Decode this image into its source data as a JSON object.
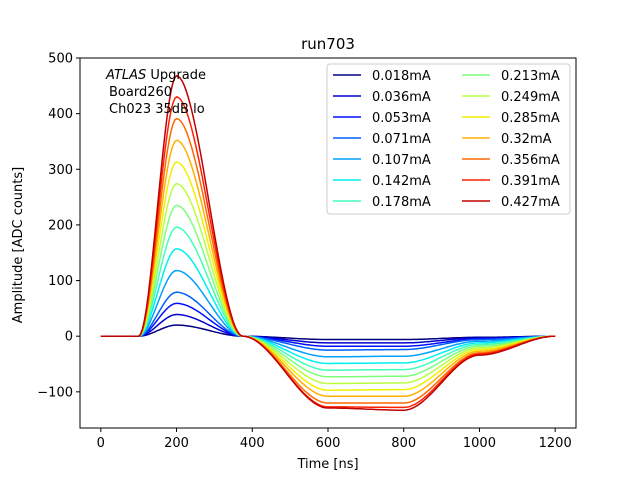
{
  "chart_data": {
    "type": "line",
    "title": "run703",
    "xlabel": "Time [ns]",
    "ylabel": "Amplitude [ADC counts]",
    "xlim": [
      -55,
      1255
    ],
    "ylim": [
      -165,
      500
    ],
    "xticks": [
      0,
      200,
      400,
      600,
      800,
      1000,
      1200
    ],
    "yticks": [
      -100,
      0,
      100,
      200,
      300,
      400,
      500
    ],
    "xtick_labels": [
      "0",
      "200",
      "400",
      "600",
      "800",
      "1000",
      "1200"
    ],
    "ytick_labels": [
      "−100",
      "0",
      "100",
      "200",
      "300",
      "400",
      "500"
    ],
    "grid": false,
    "legend_position": "top-right",
    "legend_columns": 2,
    "annotation": {
      "atlas": "ATLAS",
      "upgrade": " Upgrade",
      "line2": "Board260",
      "line3": "Ch023 35dB lo"
    },
    "x": [
      0,
      100,
      200,
      375,
      600,
      800,
      1000,
      1200
    ],
    "series": [
      {
        "name": "0.018mA",
        "color": "#000080",
        "values": [
          0,
          0,
          20,
          0,
          -6,
          -6,
          -2,
          0
        ]
      },
      {
        "name": "0.036mA",
        "color": "#0000d0",
        "values": [
          0,
          0,
          39,
          0,
          -12,
          -12,
          -3,
          0
        ]
      },
      {
        "name": "0.053mA",
        "color": "#0010ff",
        "values": [
          0,
          0,
          59,
          0,
          -18,
          -18,
          -5,
          0
        ]
      },
      {
        "name": "0.071mA",
        "color": "#0060ff",
        "values": [
          0,
          0,
          79,
          0,
          -25,
          -24,
          -6,
          0
        ]
      },
      {
        "name": "0.107mA",
        "color": "#00a0ff",
        "values": [
          0,
          0,
          118,
          0,
          -37,
          -36,
          -9,
          0
        ]
      },
      {
        "name": "0.142mA",
        "color": "#00f0f0",
        "values": [
          0,
          0,
          157,
          0,
          -49,
          -48,
          -12,
          0
        ]
      },
      {
        "name": "0.178mA",
        "color": "#40ffb8",
        "values": [
          0,
          0,
          196,
          0,
          -61,
          -60,
          -15,
          0
        ]
      },
      {
        "name": "0.213mA",
        "color": "#7dff7a",
        "values": [
          0,
          0,
          235,
          0,
          -73,
          -72,
          -18,
          0
        ]
      },
      {
        "name": "0.249mA",
        "color": "#b8ff40",
        "values": [
          0,
          0,
          274,
          0,
          -85,
          -84,
          -21,
          0
        ]
      },
      {
        "name": "0.285mA",
        "color": "#f0f000",
        "values": [
          0,
          0,
          313,
          0,
          -97,
          -96,
          -24,
          0
        ]
      },
      {
        "name": "0.32mA",
        "color": "#ffb000",
        "values": [
          0,
          0,
          352,
          0,
          -108,
          -108,
          -27,
          0
        ]
      },
      {
        "name": "0.356mA",
        "color": "#ff6800",
        "values": [
          0,
          0,
          391,
          0,
          -120,
          -120,
          -30,
          0
        ]
      },
      {
        "name": "0.391mA",
        "color": "#ff2000",
        "values": [
          0,
          0,
          430,
          0,
          -127,
          -128,
          -32,
          0
        ]
      },
      {
        "name": "0.427mA",
        "color": "#c00000",
        "values": [
          0,
          0,
          468,
          0,
          -129,
          -133,
          -34,
          0
        ]
      }
    ]
  }
}
